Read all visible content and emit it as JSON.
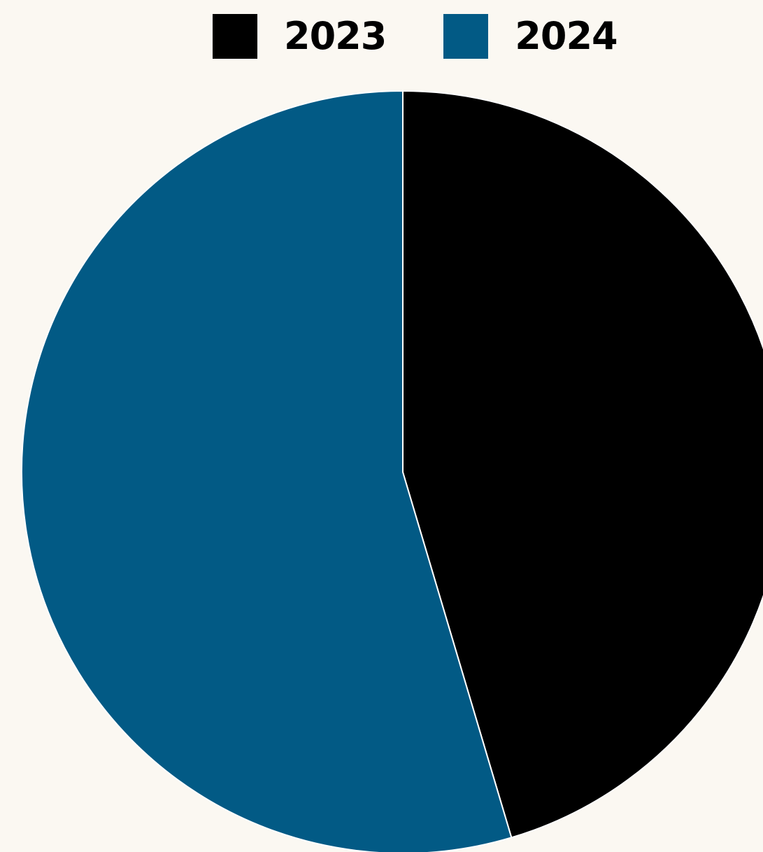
{
  "background": "#fbf8f2",
  "chart_data": {
    "type": "pie",
    "title": "",
    "legend_position": "top",
    "start_angle_deg": 0,
    "direction": "clockwise",
    "slice_border_color": "#ffffff",
    "slices": [
      {
        "label": "2023",
        "value": 45.4,
        "color": "#000000"
      },
      {
        "label": "2024",
        "value": 54.6,
        "color": "#025a85"
      }
    ]
  }
}
